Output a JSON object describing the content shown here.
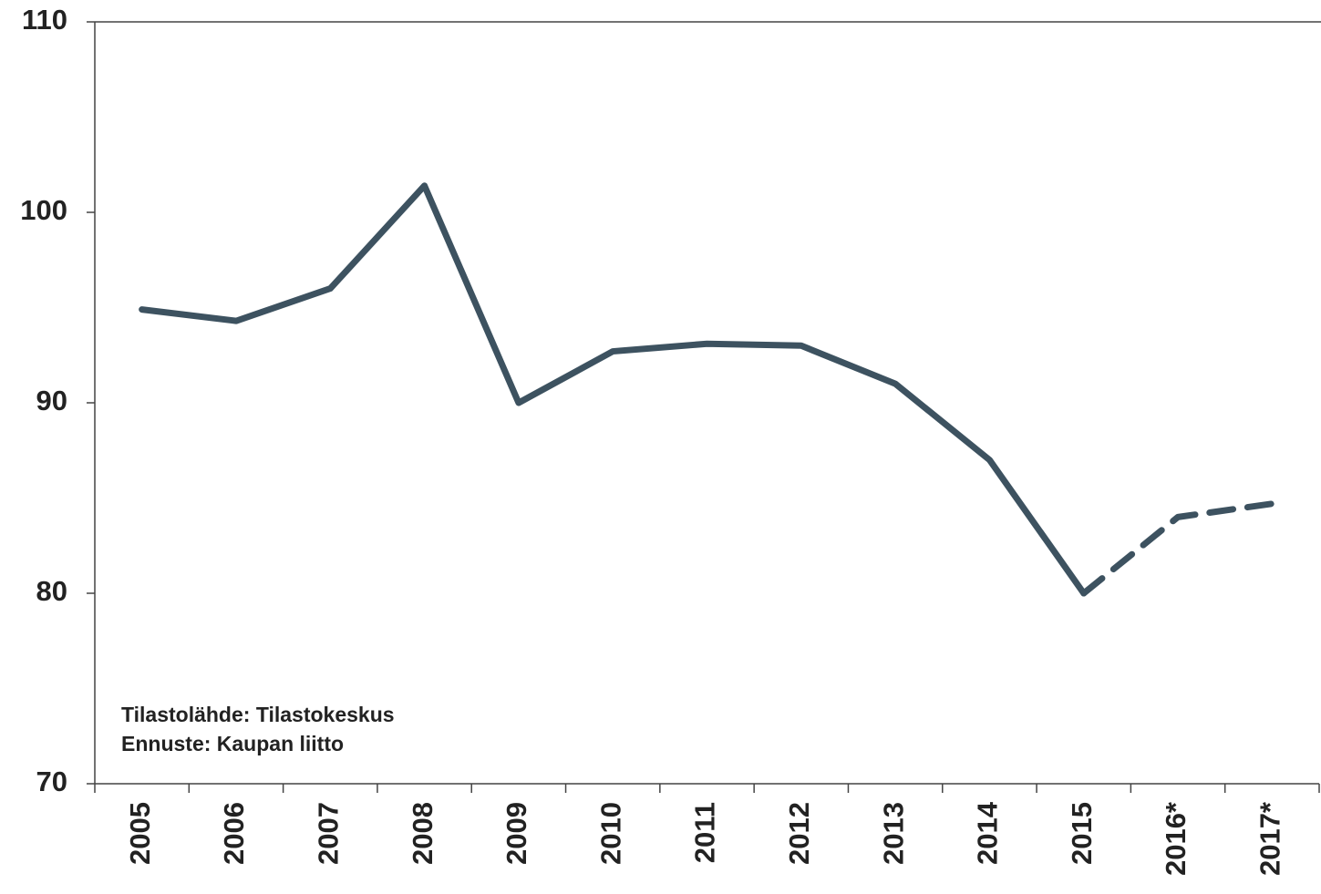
{
  "chart_data": {
    "type": "line",
    "categories": [
      "2005",
      "2006",
      "2007",
      "2008",
      "2009",
      "2010",
      "2011",
      "2012",
      "2013",
      "2014",
      "2015",
      "2016*",
      "2017*"
    ],
    "series": [
      {
        "color": "#3d5260",
        "values": [
          94.9,
          94.3,
          96.0,
          101.4,
          90.0,
          92.7,
          93.1,
          93.0,
          91.0,
          87.0,
          80.0,
          null,
          null
        ]
      },
      {
        "color": "#3d5260",
        "dashed": true,
        "values": [
          null,
          null,
          null,
          null,
          null,
          null,
          null,
          null,
          null,
          null,
          80.0,
          84.0,
          84.7
        ]
      }
    ],
    "ylim": [
      70,
      110
    ],
    "yticks": [
      70,
      80,
      90,
      100,
      110
    ],
    "annotations": [
      "Tilastolähde: Tilastokeskus",
      "Ennuste: Kaupan liitto"
    ]
  }
}
